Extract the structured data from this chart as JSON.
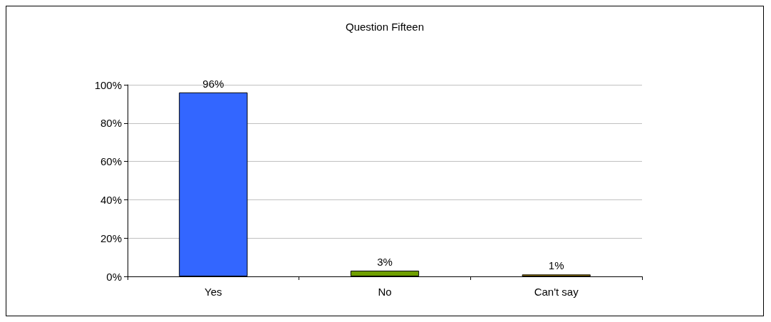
{
  "chart_data": {
    "type": "bar",
    "title": "Question Fifteen",
    "categories": [
      "Yes",
      "No",
      "Can't say"
    ],
    "values": [
      96,
      3,
      1
    ],
    "colors": [
      "#3366ff",
      "#6f9f00",
      "#c49a00"
    ],
    "value_labels": [
      "96%",
      "3%",
      "1%"
    ],
    "ylim": [
      0,
      100
    ],
    "yticks": [
      {
        "value": 0,
        "label": "0%"
      },
      {
        "value": 20,
        "label": "20%"
      },
      {
        "value": 40,
        "label": "40%"
      },
      {
        "value": 60,
        "label": "60%"
      },
      {
        "value": 80,
        "label": "80%"
      },
      {
        "value": 100,
        "label": "100%"
      }
    ],
    "grid": "y"
  }
}
